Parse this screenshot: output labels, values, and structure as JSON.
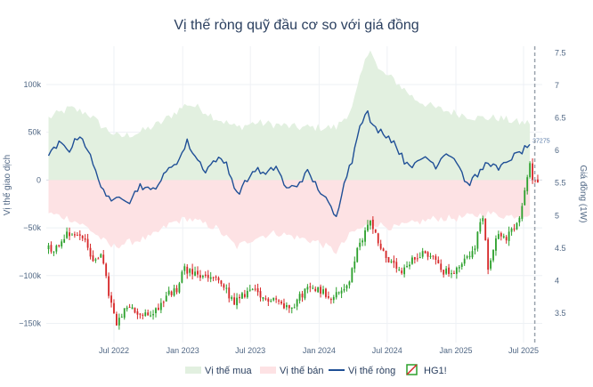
{
  "chart_data": {
    "type": "line",
    "title": "Vị thế ròng quỹ đầu cơ so với giá đồng",
    "left_axis": {
      "label": "Vị thế giao dịch",
      "range": [
        -170000,
        140000
      ],
      "ticks": [
        100000,
        50000,
        0,
        -50000,
        -100000,
        -150000
      ],
      "tick_labels": [
        "100k",
        "50k",
        "0",
        "−50k",
        "−100k",
        "−150k"
      ]
    },
    "right_axis": {
      "label": "Giá đồng (1W)",
      "range": [
        3.05,
        7.6
      ],
      "ticks": [
        3.5,
        4,
        4.5,
        5,
        5.5,
        6,
        6.5,
        7,
        7.5
      ],
      "tick_labels": [
        "3.5",
        "4",
        "4.5",
        "5",
        "5.5",
        "6",
        "6.5",
        "7",
        "7.5"
      ]
    },
    "x_axis": {
      "range": [
        "2022-01-01",
        "2025-08-20"
      ],
      "ticks": [
        "2022-07-01",
        "2023-01-01",
        "2023-07-01",
        "2024-01-01",
        "2024-07-01",
        "2025-01-01",
        "2025-07-01"
      ],
      "tick_labels": [
        "Jul 2022",
        "Jan 2023",
        "Jul 2023",
        "Jan 2024",
        "Jul 2024",
        "Jan 2025",
        "Jul 2025"
      ]
    },
    "grid": true,
    "legend_position": "bottom",
    "marker_line_date": "2025-07-31",
    "last_value_annotation": "37275",
    "net_position_knots": [
      [
        "2022-01-07",
        25000
      ],
      [
        "2022-02-04",
        38000
      ],
      [
        "2022-03-04",
        32000
      ],
      [
        "2022-04-01",
        48000
      ],
      [
        "2022-04-22",
        32000
      ],
      [
        "2022-05-13",
        8000
      ],
      [
        "2022-06-03",
        -10000
      ],
      [
        "2022-06-24",
        -25000
      ],
      [
        "2022-07-15",
        -15000
      ],
      [
        "2022-08-12",
        -22000
      ],
      [
        "2022-09-09",
        -5000
      ],
      [
        "2022-10-07",
        -12000
      ],
      [
        "2022-11-04",
        0
      ],
      [
        "2022-12-02",
        15000
      ],
      [
        "2022-12-23",
        22000
      ],
      [
        "2023-01-13",
        40000
      ],
      [
        "2023-02-03",
        25000
      ],
      [
        "2023-03-03",
        10000
      ],
      [
        "2023-03-31",
        22000
      ],
      [
        "2023-04-28",
        18000
      ],
      [
        "2023-05-26",
        -15000
      ],
      [
        "2023-06-23",
        0
      ],
      [
        "2023-07-14",
        12000
      ],
      [
        "2023-08-11",
        5000
      ],
      [
        "2023-09-08",
        15000
      ],
      [
        "2023-10-06",
        -10000
      ],
      [
        "2023-11-03",
        -5000
      ],
      [
        "2023-12-01",
        8000
      ],
      [
        "2023-12-29",
        -8000
      ],
      [
        "2024-01-26",
        -25000
      ],
      [
        "2024-02-16",
        -40000
      ],
      [
        "2024-03-08",
        0
      ],
      [
        "2024-03-29",
        20000
      ],
      [
        "2024-04-19",
        60000
      ],
      [
        "2024-05-10",
        70000
      ],
      [
        "2024-05-24",
        55000
      ],
      [
        "2024-06-21",
        50000
      ],
      [
        "2024-07-19",
        40000
      ],
      [
        "2024-08-16",
        20000
      ],
      [
        "2024-09-13",
        15000
      ],
      [
        "2024-10-11",
        25000
      ],
      [
        "2024-11-08",
        15000
      ],
      [
        "2024-12-06",
        30000
      ],
      [
        "2025-01-03",
        20000
      ],
      [
        "2025-01-31",
        -5000
      ],
      [
        "2025-02-28",
        5000
      ],
      [
        "2025-03-28",
        20000
      ],
      [
        "2025-04-25",
        10000
      ],
      [
        "2025-05-23",
        22000
      ],
      [
        "2025-06-20",
        28000
      ],
      [
        "2025-07-18",
        37275
      ]
    ],
    "long_envelope_knots": [
      [
        "2022-01-07",
        65000
      ],
      [
        "2022-03-04",
        75000
      ],
      [
        "2022-04-22",
        70000
      ],
      [
        "2022-06-03",
        55000
      ],
      [
        "2022-07-15",
        45000
      ],
      [
        "2022-09-09",
        50000
      ],
      [
        "2022-11-04",
        60000
      ],
      [
        "2023-01-13",
        80000
      ],
      [
        "2023-02-17",
        75000
      ],
      [
        "2023-03-31",
        65000
      ],
      [
        "2023-05-26",
        55000
      ],
      [
        "2023-07-14",
        60000
      ],
      [
        "2023-09-08",
        58000
      ],
      [
        "2023-11-03",
        55000
      ],
      [
        "2023-12-29",
        55000
      ],
      [
        "2024-02-16",
        55000
      ],
      [
        "2024-03-29",
        75000
      ],
      [
        "2024-04-26",
        115000
      ],
      [
        "2024-05-17",
        140000
      ],
      [
        "2024-06-07",
        115000
      ],
      [
        "2024-07-19",
        105000
      ],
      [
        "2024-09-13",
        85000
      ],
      [
        "2024-11-08",
        75000
      ],
      [
        "2025-01-03",
        70000
      ],
      [
        "2025-02-28",
        65000
      ],
      [
        "2025-04-25",
        65000
      ],
      [
        "2025-06-20",
        60000
      ],
      [
        "2025-07-18",
        60000
      ]
    ],
    "short_envelope_knots": [
      [
        "2022-01-07",
        -35000
      ],
      [
        "2022-03-04",
        -40000
      ],
      [
        "2022-04-22",
        -50000
      ],
      [
        "2022-06-24",
        -70000
      ],
      [
        "2022-08-12",
        -65000
      ],
      [
        "2022-10-07",
        -60000
      ],
      [
        "2022-12-02",
        -45000
      ],
      [
        "2023-01-13",
        -40000
      ],
      [
        "2023-03-31",
        -50000
      ],
      [
        "2023-05-26",
        -70000
      ],
      [
        "2023-07-14",
        -60000
      ],
      [
        "2023-09-08",
        -55000
      ],
      [
        "2023-11-03",
        -60000
      ],
      [
        "2023-12-29",
        -65000
      ],
      [
        "2024-02-16",
        -75000
      ],
      [
        "2024-03-29",
        -55000
      ],
      [
        "2024-05-24",
        -45000
      ],
      [
        "2024-07-19",
        -50000
      ],
      [
        "2024-09-13",
        -45000
      ],
      [
        "2024-11-08",
        -40000
      ],
      [
        "2025-01-03",
        -40000
      ],
      [
        "2025-03-28",
        -35000
      ],
      [
        "2025-05-23",
        -38000
      ],
      [
        "2025-07-18",
        -35000
      ]
    ],
    "price_knots": [
      [
        "2022-01-07",
        4.5
      ],
      [
        "2022-02-04",
        4.5
      ],
      [
        "2022-03-04",
        4.75
      ],
      [
        "2022-04-01",
        4.7
      ],
      [
        "2022-04-22",
        4.65
      ],
      [
        "2022-05-13",
        4.25
      ],
      [
        "2022-06-03",
        4.45
      ],
      [
        "2022-06-24",
        3.8
      ],
      [
        "2022-07-15",
        3.3
      ],
      [
        "2022-08-12",
        3.6
      ],
      [
        "2022-09-09",
        3.5
      ],
      [
        "2022-10-07",
        3.45
      ],
      [
        "2022-11-04",
        3.6
      ],
      [
        "2022-12-02",
        3.8
      ],
      [
        "2022-12-23",
        3.85
      ],
      [
        "2023-01-13",
        4.2
      ],
      [
        "2023-02-03",
        4.1
      ],
      [
        "2023-03-03",
        4.05
      ],
      [
        "2023-03-31",
        4.05
      ],
      [
        "2023-04-28",
        3.9
      ],
      [
        "2023-05-26",
        3.65
      ],
      [
        "2023-06-23",
        3.8
      ],
      [
        "2023-07-14",
        3.85
      ],
      [
        "2023-08-11",
        3.7
      ],
      [
        "2023-09-08",
        3.75
      ],
      [
        "2023-10-06",
        3.6
      ],
      [
        "2023-11-03",
        3.65
      ],
      [
        "2023-12-01",
        3.85
      ],
      [
        "2023-12-29",
        3.9
      ],
      [
        "2024-01-26",
        3.8
      ],
      [
        "2024-02-16",
        3.75
      ],
      [
        "2024-03-08",
        3.85
      ],
      [
        "2024-03-29",
        4.0
      ],
      [
        "2024-04-19",
        4.45
      ],
      [
        "2024-05-10",
        4.75
      ],
      [
        "2024-05-24",
        4.95
      ],
      [
        "2024-06-21",
        4.5
      ],
      [
        "2024-07-19",
        4.25
      ],
      [
        "2024-08-16",
        4.1
      ],
      [
        "2024-09-13",
        4.3
      ],
      [
        "2024-10-11",
        4.45
      ],
      [
        "2024-11-08",
        4.35
      ],
      [
        "2024-12-06",
        4.15
      ],
      [
        "2025-01-03",
        4.1
      ],
      [
        "2025-01-31",
        4.3
      ],
      [
        "2025-02-28",
        4.55
      ],
      [
        "2025-03-21",
        5.0
      ],
      [
        "2025-04-04",
        4.2
      ],
      [
        "2025-04-25",
        4.7
      ],
      [
        "2025-05-23",
        4.65
      ],
      [
        "2025-06-20",
        4.85
      ],
      [
        "2025-07-04",
        5.1
      ],
      [
        "2025-07-18",
        5.6
      ],
      [
        "2025-07-25",
        5.75
      ],
      [
        "2025-08-01",
        5.55
      ],
      [
        "2025-08-08",
        5.55
      ]
    ],
    "series": [
      {
        "name": "Vị thế mua",
        "color": "#e2f0e0"
      },
      {
        "name": "Vị thế bán",
        "color": "#fde2e4"
      },
      {
        "name": "Vị thế ròng",
        "color": "#1f4f96"
      },
      {
        "name": "HG1!",
        "color_up": "#2ca02c",
        "color_down": "#d62728"
      }
    ]
  }
}
